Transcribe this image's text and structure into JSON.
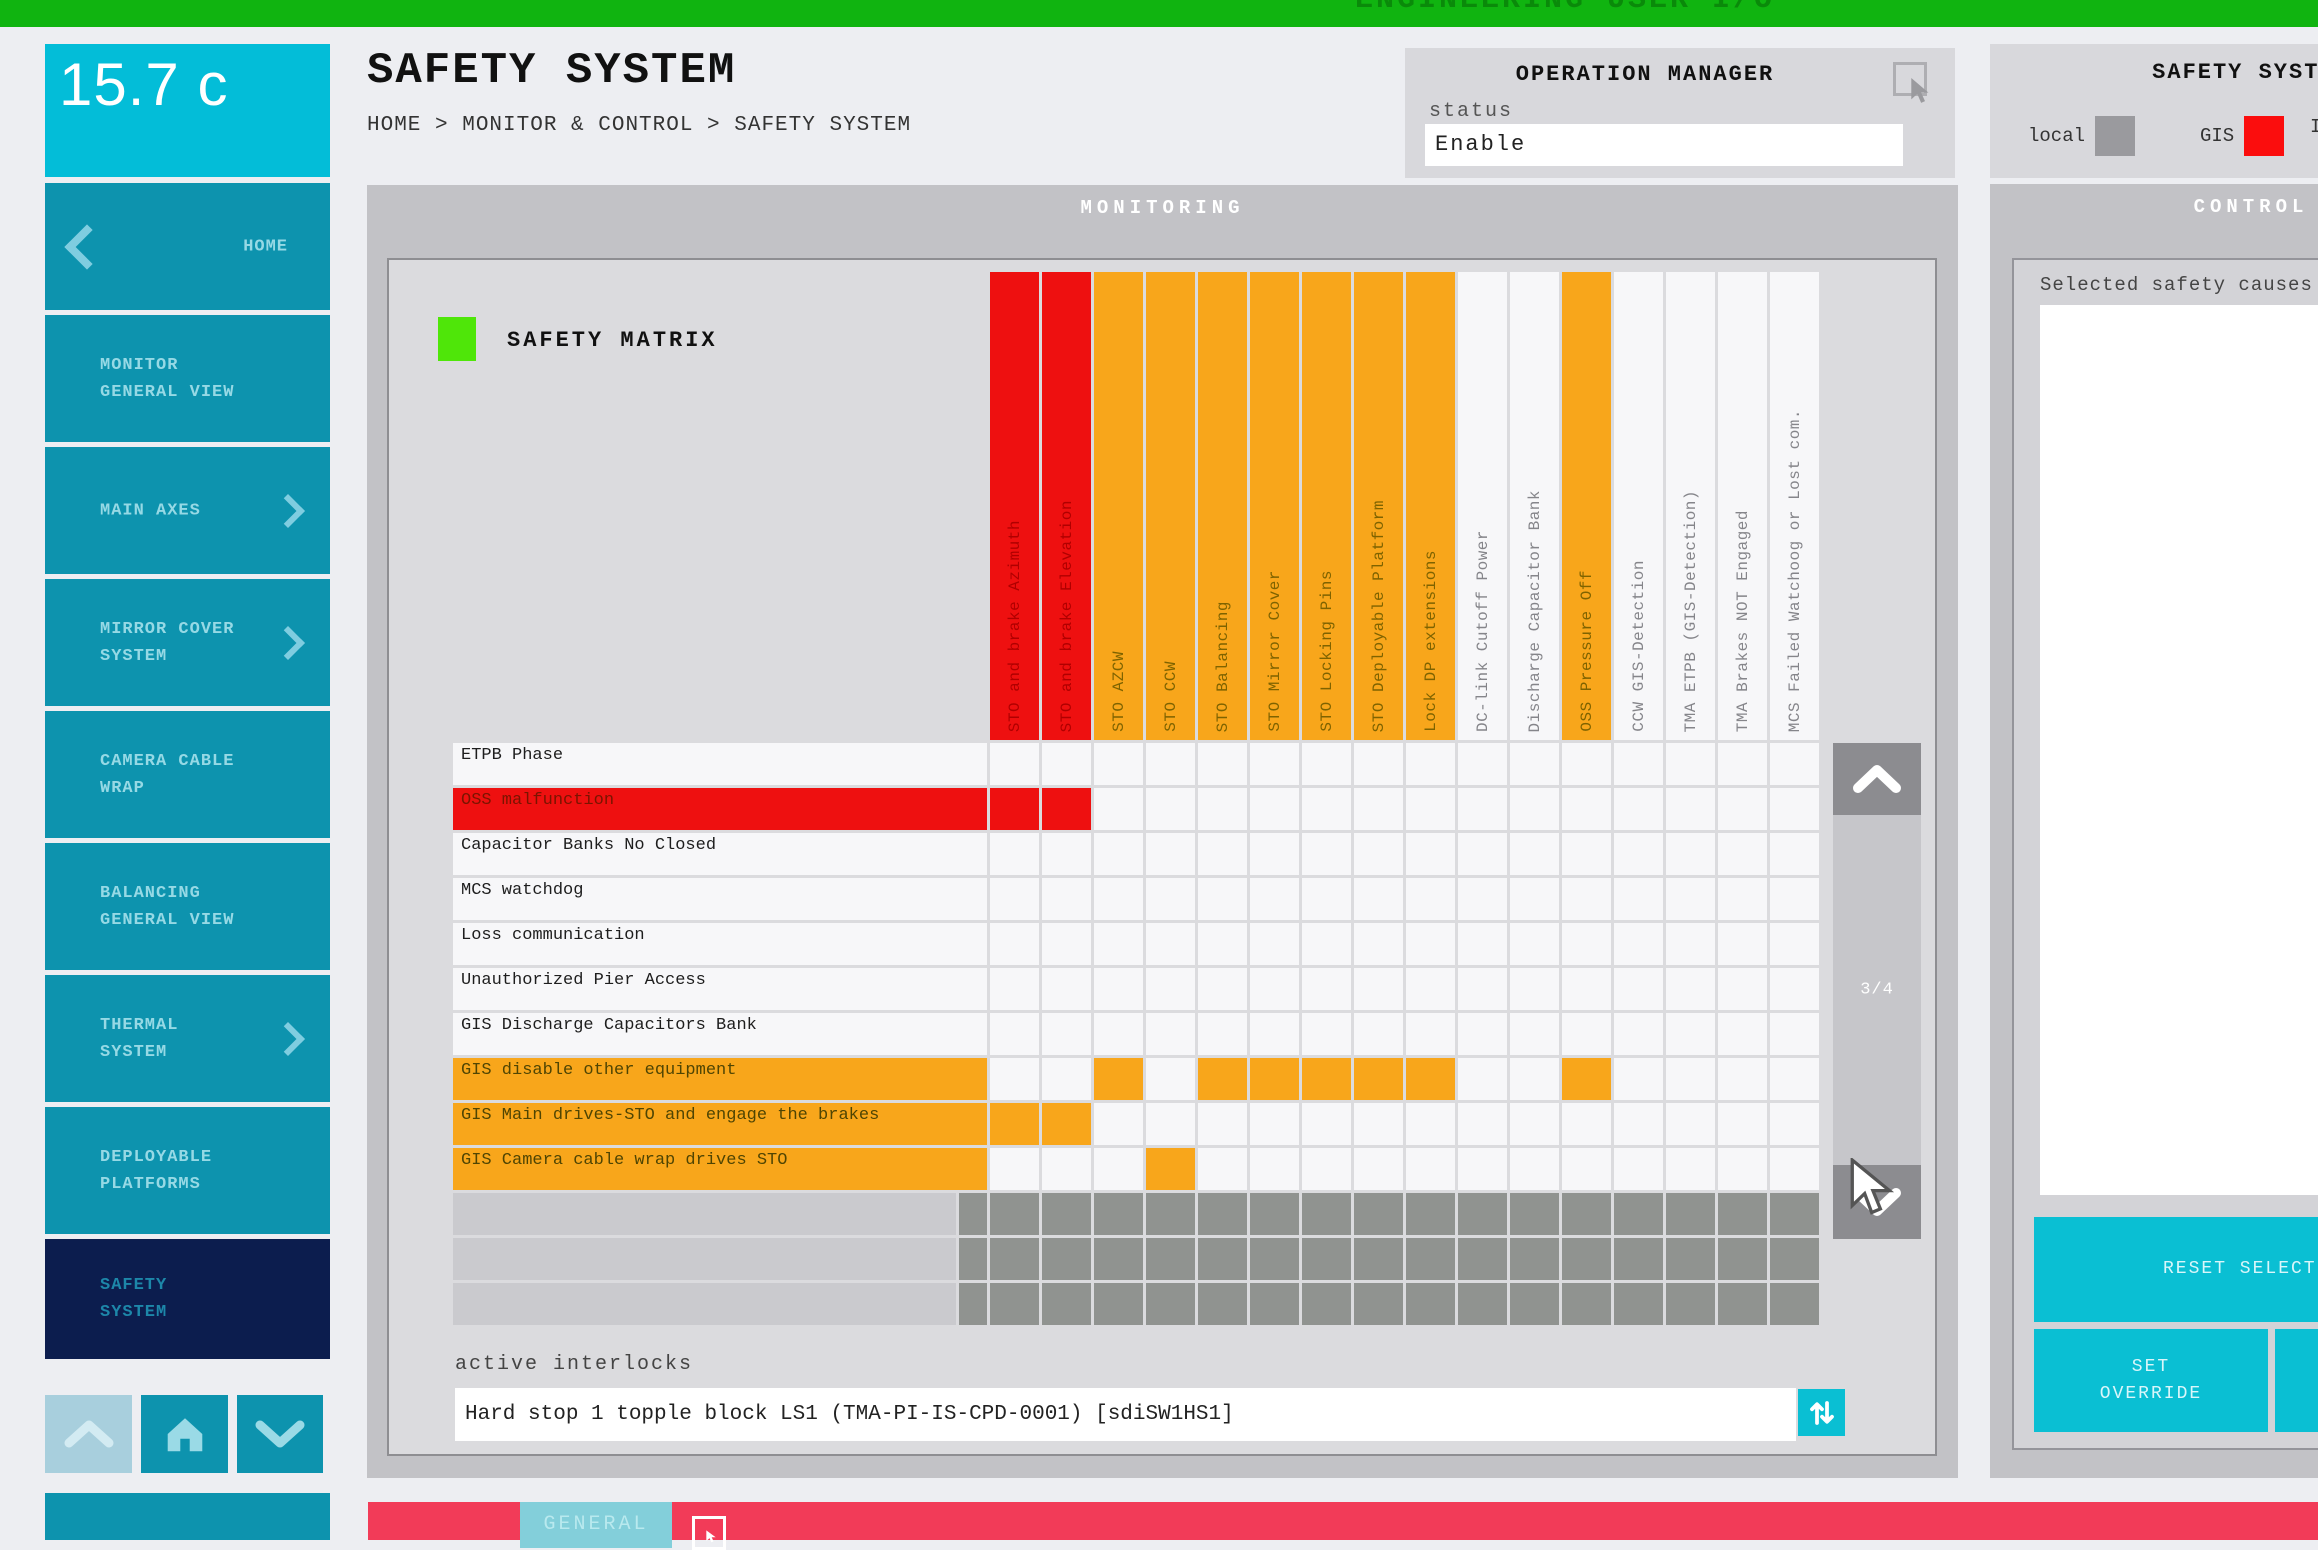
{
  "top_bar": {
    "label": "ENGINEERING USER I/O",
    "color": "#10B410"
  },
  "sidebar": {
    "display_value": "15.7 c",
    "items": [
      {
        "label": "HOME",
        "chevron": "left",
        "selected": false
      },
      {
        "label": "MONITOR\nGENERAL VIEW",
        "chevron": null,
        "selected": false
      },
      {
        "label": "MAIN AXES",
        "chevron": "right",
        "selected": false
      },
      {
        "label": "MIRROR COVER\nSYSTEM",
        "chevron": "right",
        "selected": false
      },
      {
        "label": "CAMERA CABLE\nWRAP",
        "chevron": null,
        "selected": false
      },
      {
        "label": "BALANCING\nGENERAL VIEW",
        "chevron": null,
        "selected": false
      },
      {
        "label": "THERMAL\nSYSTEM",
        "chevron": "right",
        "selected": false
      },
      {
        "label": "DEPLOYABLE\nPLATFORMS",
        "chevron": null,
        "selected": false
      },
      {
        "label": "SAFETY\nSYSTEM",
        "chevron": null,
        "selected": true
      }
    ]
  },
  "header": {
    "title": "SAFETY SYSTEM",
    "breadcrumb": "HOME > MONITOR & CONTROL > SAFETY SYSTEM"
  },
  "operation_manager": {
    "title": "OPERATION MANAGER",
    "status_label": "status",
    "status_value": "Enable"
  },
  "monitoring": {
    "title": "MONITORING",
    "legend_label": "SAFETY MATRIX",
    "columns": [
      {
        "label": "STO and brake Azimuth",
        "color": "red"
      },
      {
        "label": "STO and brake Elevation",
        "color": "red"
      },
      {
        "label": "STO AZCW",
        "color": "orange"
      },
      {
        "label": "STO CCW",
        "color": "orange"
      },
      {
        "label": "STO Balancing",
        "color": "orange"
      },
      {
        "label": "STO Mirror Cover",
        "color": "orange"
      },
      {
        "label": "STO Locking Pins",
        "color": "orange"
      },
      {
        "label": "STO Deployable Platform",
        "color": "orange"
      },
      {
        "label": "Lock DP extensions",
        "color": "orange"
      },
      {
        "label": "DC-link Cutoff Power",
        "color": "white"
      },
      {
        "label": "Discharge Capacitor Bank",
        "color": "white"
      },
      {
        "label": "OSS Pressure Off",
        "color": "orange"
      },
      {
        "label": "CCW GIS-Detection",
        "color": "white"
      },
      {
        "label": "TMA ETPB (GIS-Detection)",
        "color": "white"
      },
      {
        "label": "TMA Brakes NOT Engaged",
        "color": "white"
      },
      {
        "label": "MCS Failed Watchoog or Lost com.",
        "color": "white"
      }
    ],
    "rows": [
      {
        "label": "ETPB Phase",
        "color": "white",
        "marked": []
      },
      {
        "label": "OSS malfunction",
        "color": "red",
        "marked": [
          1,
          2
        ]
      },
      {
        "label": "Capacitor Banks No Closed",
        "color": "white",
        "marked": []
      },
      {
        "label": "MCS watchdog",
        "color": "white",
        "marked": []
      },
      {
        "label": "Loss communication",
        "color": "white",
        "marked": []
      },
      {
        "label": "Unauthorized Pier Access",
        "color": "white",
        "marked": []
      },
      {
        "label": "GIS Discharge Capacitors Bank",
        "color": "white",
        "marked": []
      },
      {
        "label": "GIS disable other equipment",
        "color": "orange",
        "marked": [
          3,
          5,
          6,
          7,
          8,
          9,
          12
        ]
      },
      {
        "label": "GIS Main drives-STO and engage the brakes",
        "color": "orange",
        "marked": [
          1,
          2
        ]
      },
      {
        "label": "GIS Camera cable wrap drives STO",
        "color": "orange",
        "marked": [
          4
        ]
      }
    ],
    "gray_row_count": 3,
    "pager": "3/4",
    "active_interlocks_label": "active interlocks",
    "active_interlocks_value": "Hard stop 1 topple block LS1 (TMA-PI-IS-CPD-0001) [sdiSW1HS1]"
  },
  "right_panel": {
    "title": "SAFETY SYSTEM",
    "swatches": [
      {
        "label": "local",
        "color": "#9A9A9E"
      },
      {
        "label": "GIS",
        "color": "#FB0D0D"
      },
      {
        "label": "I",
        "color": null
      }
    ],
    "control_title": "CONTROL",
    "selected_causes_label": "Selected safety causes",
    "reset_button_label": "RESET SELECTION",
    "set_override_label": "SET\nOVERRIDE"
  },
  "bottom_bar": {
    "general_label": "GENERAL"
  },
  "colors": {
    "red": "#EE1010",
    "orange": "#F8A61B",
    "gray_cell": "#909390",
    "sidebar_teal": "#0D93AE",
    "display_cyan": "#03BDD8",
    "selected_navy": "#0C1D4E",
    "button_cyan": "#0ABFD3",
    "bottom_pink": "#F23B58",
    "top_green": "#10B410",
    "legend_green": "#4FE609"
  }
}
